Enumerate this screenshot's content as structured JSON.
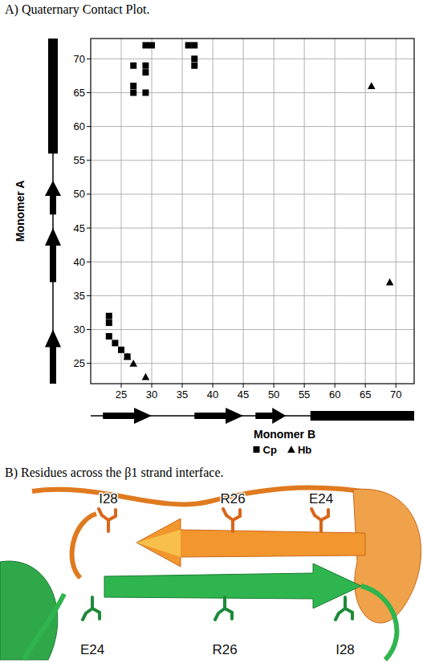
{
  "chart_data": {
    "type": "scatter",
    "title": "A) Quaternary Contact Plot.",
    "x_label": "Monomer B",
    "y_label": "Monomer A",
    "xlim": [
      20,
      73
    ],
    "ylim": [
      22,
      73
    ],
    "xticks": [
      25,
      30,
      35,
      40,
      45,
      50,
      55,
      60,
      65,
      70
    ],
    "yticks": [
      25,
      30,
      35,
      40,
      45,
      50,
      55,
      60,
      65,
      70
    ],
    "grid": true,
    "legend": "bottom",
    "series": [
      {
        "name": "Cp",
        "color": "#000000",
        "marker": "square",
        "x": [
          27,
          27,
          27,
          29,
          30,
          29,
          29,
          29,
          36,
          37,
          37,
          37,
          23,
          23,
          23,
          24,
          25,
          26
        ],
        "values": [
          69,
          66,
          65,
          72,
          72,
          69,
          68,
          65,
          72,
          72,
          70,
          69,
          32,
          31,
          29,
          28,
          27,
          26
        ]
      },
      {
        "name": "Hb",
        "color": "#000000",
        "marker": "triangle",
        "x": [
          26,
          27,
          29,
          69,
          66
        ],
        "values": [
          26,
          25,
          23,
          37,
          66
        ]
      }
    ],
    "secondary_structure": [
      {
        "type": "strand",
        "start": 22,
        "end": 30
      },
      {
        "type": "strand",
        "start": 37,
        "end": 45
      },
      {
        "type": "strand",
        "start": 47,
        "end": 52
      },
      {
        "type": "helix",
        "start": 56,
        "end": 73
      }
    ]
  },
  "panel_b": {
    "title": "B) Residues across the β1 strand interface.",
    "top_strand_labels": [
      "I28",
      "R26",
      "E24"
    ],
    "bottom_strand_labels": [
      "E24",
      "R26",
      "I28"
    ]
  }
}
